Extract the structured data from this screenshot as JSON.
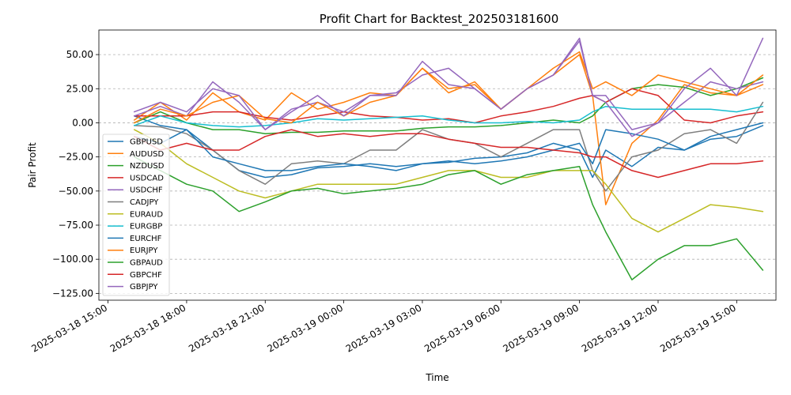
{
  "chart_data": {
    "type": "line",
    "title": "Profit Chart for Backtest_202503181600",
    "xlabel": "Time",
    "ylabel": "Pair Profit",
    "grid": "y-dashed",
    "legend_position": "left",
    "x_range_hours": [
      -0.35,
      25.5
    ],
    "x_ticks": [
      {
        "label": "2025-03-18 15:00",
        "h": 0
      },
      {
        "label": "2025-03-18 18:00",
        "h": 3
      },
      {
        "label": "2025-03-18 21:00",
        "h": 6
      },
      {
        "label": "2025-03-19 00:00",
        "h": 9
      },
      {
        "label": "2025-03-19 03:00",
        "h": 12
      },
      {
        "label": "2025-03-19 06:00",
        "h": 15
      },
      {
        "label": "2025-03-19 09:00",
        "h": 18
      },
      {
        "label": "2025-03-19 12:00",
        "h": 21
      },
      {
        "label": "2025-03-19 15:00",
        "h": 24
      }
    ],
    "ylim": [
      -130,
      68
    ],
    "y_ticks": [
      50,
      25,
      0,
      -25,
      -50,
      -75,
      -100,
      -125
    ],
    "y_tick_labels": [
      "50.00",
      "25.00",
      "0.00",
      "−25.00",
      "−50.00",
      "−75.00",
      "−100.00",
      "−125.00"
    ],
    "x_hours": [
      1,
      2,
      3,
      4,
      5,
      6,
      7,
      8,
      9,
      10,
      11,
      12,
      13,
      14,
      15,
      16,
      17,
      18,
      18.5,
      19,
      20,
      21,
      22,
      23,
      24,
      25
    ],
    "series": [
      {
        "name": "GBPUSD",
        "color": "#1f77b4",
        "values": [
          5,
          -2,
          -5,
          -20,
          -35,
          -40,
          -38,
          -33,
          -32,
          -30,
          -32,
          -30,
          -29,
          -26,
          -25,
          -22,
          -15,
          -20,
          -40,
          -20,
          -32,
          -18,
          -20,
          -12,
          -10,
          -2
        ]
      },
      {
        "name": "AUDUSD",
        "color": "#ff7f0e",
        "values": [
          2,
          15,
          2,
          22,
          8,
          2,
          22,
          10,
          15,
          22,
          20,
          40,
          25,
          28,
          10,
          25,
          35,
          50,
          20,
          -60,
          -15,
          2,
          28,
          22,
          20,
          28
        ]
      },
      {
        "name": "NZDUSD",
        "color": "#2ca02c",
        "values": [
          0,
          8,
          0,
          -5,
          -5,
          -8,
          -7,
          -7,
          -6,
          -6,
          -6,
          -4,
          -3,
          -3,
          -2,
          0,
          2,
          0,
          5,
          15,
          25,
          28,
          26,
          20,
          25,
          33
        ]
      },
      {
        "name": "USDCAD",
        "color": "#d62728",
        "values": [
          5,
          5,
          5,
          8,
          8,
          4,
          2,
          5,
          8,
          5,
          4,
          2,
          3,
          0,
          5,
          8,
          12,
          18,
          20,
          15,
          25,
          20,
          2,
          0,
          5,
          8
        ]
      },
      {
        "name": "USDCHF",
        "color": "#9467bd",
        "values": [
          5,
          12,
          5,
          30,
          15,
          -5,
          10,
          15,
          8,
          20,
          22,
          35,
          40,
          25,
          10,
          25,
          35,
          60,
          20,
          20,
          -5,
          0,
          15,
          30,
          25,
          30
        ]
      },
      {
        "name": "CADJPY",
        "color": "#7f7f7f",
        "values": [
          -2,
          -3,
          -8,
          -20,
          -35,
          -45,
          -30,
          -28,
          -30,
          -20,
          -20,
          -5,
          -12,
          -15,
          -25,
          -15,
          -5,
          -5,
          -35,
          -50,
          -25,
          -20,
          -8,
          -5,
          -15,
          15
        ]
      },
      {
        "name": "EURAUD",
        "color": "#bcbd22",
        "values": [
          -5,
          -15,
          -30,
          -40,
          -50,
          -55,
          -50,
          -45,
          -45,
          -45,
          -45,
          -40,
          -35,
          -35,
          -40,
          -40,
          -35,
          -35,
          -35,
          -45,
          -70,
          -80,
          -70,
          -60,
          -62,
          -65
        ]
      },
      {
        "name": "EURGBP",
        "color": "#17becf",
        "values": [
          -2,
          5,
          0,
          -2,
          -3,
          -2,
          0,
          3,
          2,
          3,
          4,
          5,
          2,
          0,
          0,
          1,
          0,
          2,
          8,
          12,
          10,
          10,
          10,
          10,
          8,
          12
        ]
      },
      {
        "name": "EURCHF",
        "color": "#1f77b4",
        "values": [
          -10,
          -15,
          -5,
          -25,
          -30,
          -35,
          -35,
          -32,
          -30,
          -32,
          -35,
          -30,
          -28,
          -30,
          -28,
          -25,
          -20,
          -15,
          -30,
          -5,
          -8,
          -12,
          -20,
          -10,
          -5,
          0
        ]
      },
      {
        "name": "EURJPY",
        "color": "#ff7f0e",
        "values": [
          0,
          10,
          5,
          15,
          20,
          3,
          0,
          15,
          5,
          15,
          20,
          40,
          22,
          30,
          10,
          25,
          40,
          52,
          25,
          30,
          20,
          35,
          30,
          25,
          20,
          35
        ]
      },
      {
        "name": "GBPAUD",
        "color": "#2ca02c",
        "values": [
          -25,
          -35,
          -45,
          -50,
          -65,
          -58,
          -50,
          -48,
          -52,
          -50,
          -48,
          -45,
          -38,
          -35,
          -45,
          -38,
          -35,
          -32,
          -60,
          -80,
          -115,
          -100,
          -90,
          -90,
          -85,
          -108
        ]
      },
      {
        "name": "GBPCHF",
        "color": "#d62728",
        "values": [
          -10,
          -20,
          -15,
          -20,
          -20,
          -10,
          -5,
          -10,
          -8,
          -10,
          -8,
          -8,
          -12,
          -15,
          -18,
          -18,
          -20,
          -22,
          -25,
          -25,
          -35,
          -40,
          -35,
          -30,
          -30,
          -28
        ]
      },
      {
        "name": "GBPJPY",
        "color": "#9467bd",
        "values": [
          8,
          15,
          8,
          25,
          20,
          -5,
          8,
          20,
          5,
          20,
          20,
          45,
          28,
          25,
          10,
          25,
          35,
          62,
          20,
          15,
          -10,
          0,
          25,
          40,
          20,
          62
        ]
      }
    ]
  }
}
